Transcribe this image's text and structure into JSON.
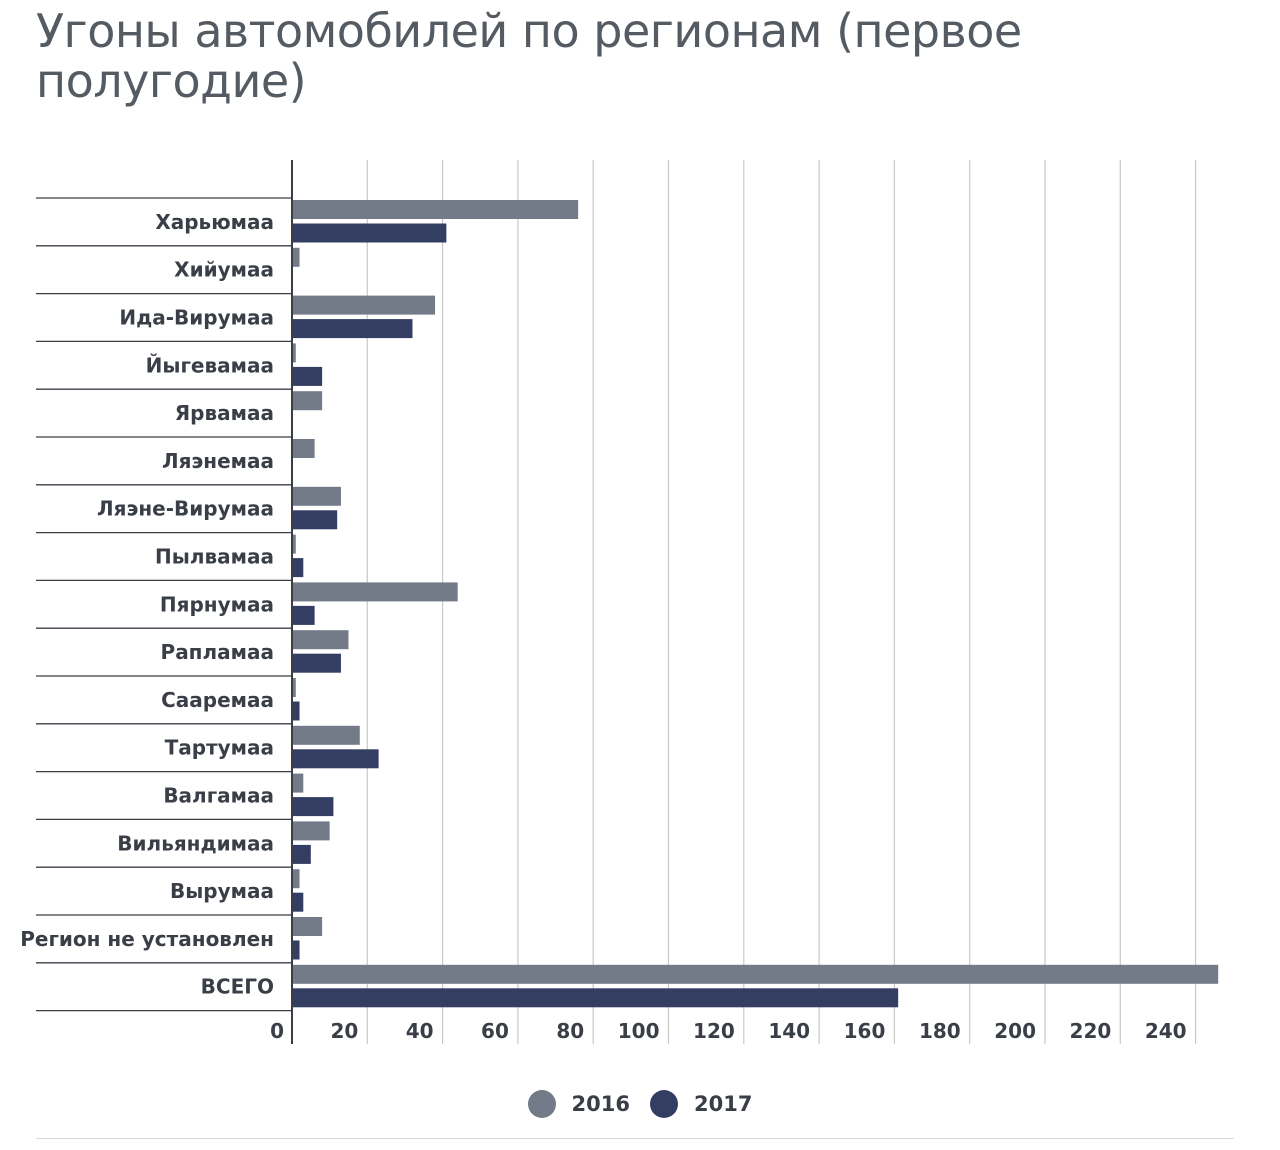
{
  "chart_data": {
    "type": "bar",
    "orientation": "horizontal",
    "title": "Угоны автомобилей по регионам (первое полугодие)",
    "categories": [
      "Харьюмаа",
      "Хийумаа",
      "Ида-Вирумаа",
      "Йыгевамаа",
      "Ярвамаа",
      "Ляэнемаа",
      "Ляэне-Вирумаа",
      "Пылвамаа",
      "Пярнумаа",
      "Рапламаа",
      "Сааремаа",
      "Тартумаа",
      "Валгамаа",
      "Вильяндимаа",
      "Вырумаа",
      "Регион не установлен",
      "ВСЕГО"
    ],
    "series": [
      {
        "name": "2016",
        "color": "#737b88",
        "values": [
          76,
          2,
          38,
          1,
          8,
          6,
          13,
          1,
          44,
          15,
          1,
          18,
          3,
          10,
          2,
          8,
          246
        ]
      },
      {
        "name": "2017",
        "color": "#333e62",
        "values": [
          41,
          0,
          32,
          8,
          0,
          0,
          12,
          3,
          6,
          13,
          2,
          23,
          11,
          5,
          3,
          2,
          161
        ]
      }
    ],
    "xticks": [
      0,
      20,
      40,
      60,
      80,
      100,
      120,
      140,
      160,
      180,
      200,
      220,
      240
    ],
    "xlim": [
      0,
      250
    ],
    "grid": true,
    "legend_position": "bottom-center"
  }
}
